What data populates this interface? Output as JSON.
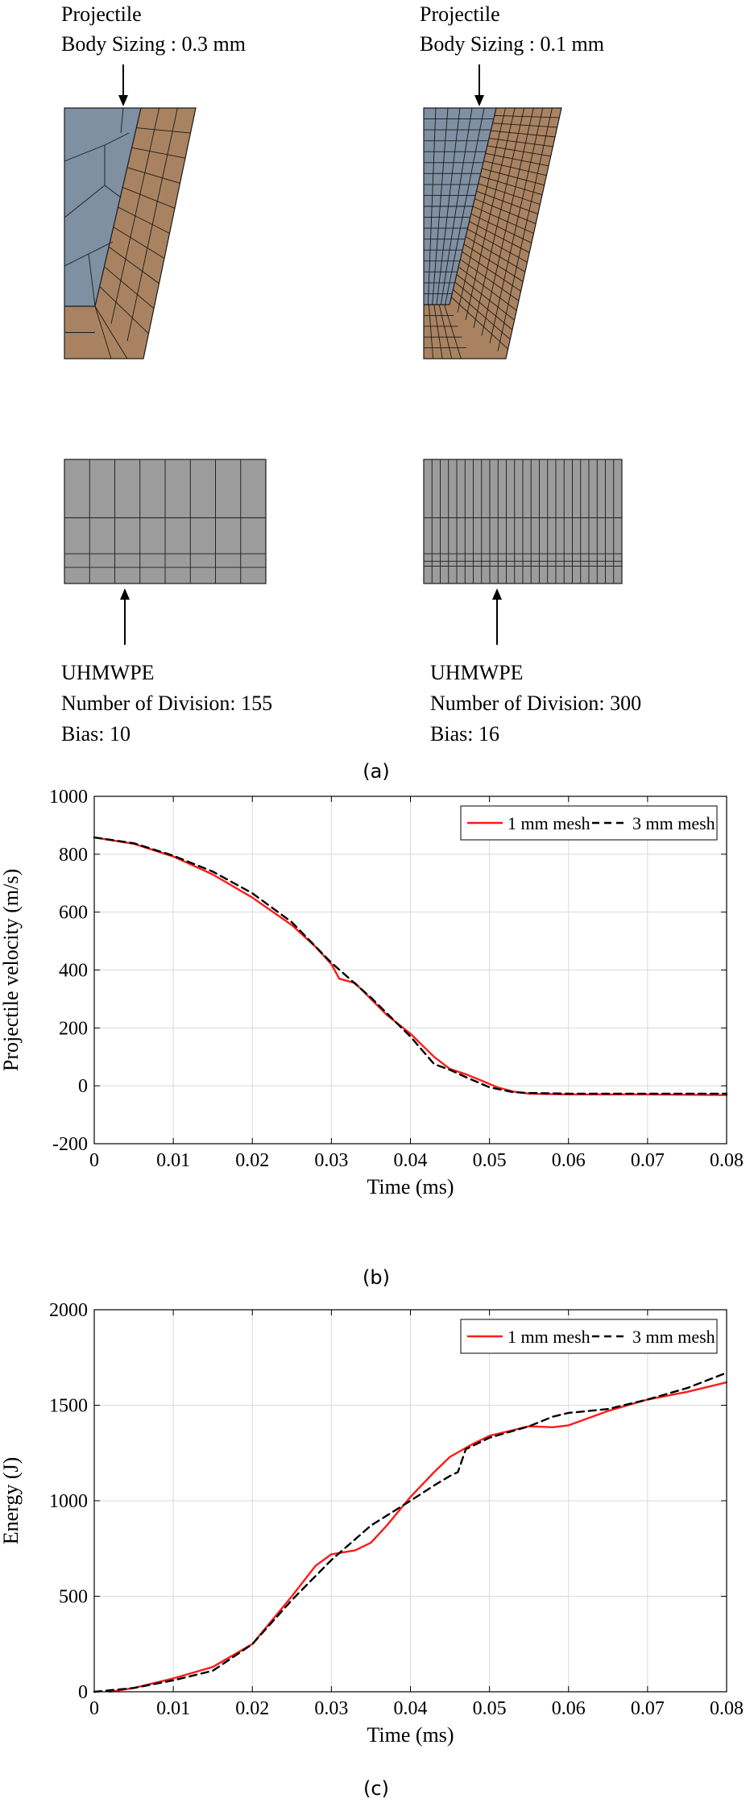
{
  "colors": {
    "projectile_fill": "#7f90a3",
    "target_fill": "#a98361",
    "plate_fill": "#9c9c9c",
    "mesh_line": "#1a1a1a",
    "series_1mm": "#ff1a1a",
    "series_3mm": "#000000"
  },
  "panel_a": {
    "left": {
      "projectile_title": "Projectile",
      "projectile_sizing": "Body Sizing : 0.3 mm",
      "plate_title": "UHMWPE",
      "plate_divisions": "Number of Division: 155",
      "plate_bias": "Bias: 10"
    },
    "right": {
      "projectile_title": "Projectile",
      "projectile_sizing": "Body Sizing : 0.1 mm",
      "plate_title": "UHMWPE",
      "plate_divisions": "Number of Division: 300",
      "plate_bias": "Bias: 16"
    },
    "caption": "(a)"
  },
  "captions": {
    "b": "(b)",
    "c": "(c)"
  },
  "chart_data": [
    {
      "type": "line",
      "title": "",
      "xlabel": "Time (ms)",
      "ylabel": "Projectile velocity (m/s)",
      "xlim": [
        0,
        0.08
      ],
      "ylim": [
        -200,
        1000
      ],
      "xticks": [
        0,
        0.01,
        0.02,
        0.03,
        0.04,
        0.05,
        0.06,
        0.07,
        0.08
      ],
      "yticks": [
        -200,
        0,
        200,
        400,
        600,
        800,
        1000
      ],
      "xtick_labels": [
        "0",
        "0.01",
        "0.02",
        "0.03",
        "0.04",
        "0.05",
        "0.06",
        "0.07",
        "0.08"
      ],
      "ytick_labels": [
        "-200",
        "0",
        "200",
        "400",
        "600",
        "800",
        "1000"
      ],
      "grid": true,
      "legend_position": "top-right",
      "series": [
        {
          "name": "1 mm mesh",
          "style": "solid",
          "x": [
            0,
            0.005,
            0.01,
            0.015,
            0.02,
            0.025,
            0.028,
            0.03,
            0.031,
            0.033,
            0.035,
            0.037,
            0.04,
            0.043,
            0.045,
            0.047,
            0.049,
            0.051,
            0.053,
            0.055,
            0.06,
            0.07,
            0.08
          ],
          "y": [
            858,
            836,
            792,
            730,
            650,
            555,
            480,
            420,
            370,
            355,
            300,
            245,
            180,
            100,
            58,
            40,
            18,
            -5,
            -20,
            -27,
            -30,
            -30,
            -32
          ]
        },
        {
          "name": "3 mm mesh",
          "style": "dashed",
          "x": [
            0,
            0.005,
            0.01,
            0.015,
            0.02,
            0.025,
            0.03,
            0.035,
            0.04,
            0.043,
            0.045,
            0.047,
            0.05,
            0.053,
            0.055,
            0.06,
            0.07,
            0.08
          ],
          "y": [
            858,
            838,
            795,
            740,
            665,
            565,
            425,
            305,
            170,
            75,
            55,
            30,
            -5,
            -22,
            -25,
            -27,
            -27,
            -27
          ]
        }
      ]
    },
    {
      "type": "line",
      "title": "",
      "xlabel": "Time (ms)",
      "ylabel": "Energy (J)",
      "xlim": [
        0,
        0.08
      ],
      "ylim": [
        0,
        2000
      ],
      "xticks": [
        0,
        0.01,
        0.02,
        0.03,
        0.04,
        0.05,
        0.06,
        0.07,
        0.08
      ],
      "yticks": [
        0,
        500,
        1000,
        1500,
        2000
      ],
      "xtick_labels": [
        "0",
        "0.01",
        "0.02",
        "0.03",
        "0.04",
        "0.05",
        "0.06",
        "0.07",
        "0.08"
      ],
      "ytick_labels": [
        "0",
        "500",
        "1000",
        "1500",
        "2000"
      ],
      "grid": true,
      "legend_position": "top-right",
      "series": [
        {
          "name": "1 mm mesh",
          "style": "solid",
          "x": [
            0.002,
            0.005,
            0.01,
            0.015,
            0.02,
            0.025,
            0.028,
            0.03,
            0.033,
            0.035,
            0.037,
            0.04,
            0.043,
            0.045,
            0.048,
            0.05,
            0.055,
            0.058,
            0.06,
            0.065,
            0.07,
            0.075,
            0.08
          ],
          "y": [
            0,
            20,
            70,
            130,
            250,
            500,
            660,
            720,
            740,
            780,
            870,
            1020,
            1150,
            1230,
            1300,
            1340,
            1390,
            1385,
            1395,
            1470,
            1530,
            1570,
            1620
          ]
        },
        {
          "name": "3 mm mesh",
          "style": "dashed",
          "x": [
            0,
            0.005,
            0.01,
            0.015,
            0.02,
            0.025,
            0.03,
            0.035,
            0.04,
            0.043,
            0.045,
            0.046,
            0.047,
            0.05,
            0.055,
            0.058,
            0.06,
            0.065,
            0.07,
            0.075,
            0.08
          ],
          "y": [
            0,
            20,
            60,
            110,
            250,
            480,
            690,
            870,
            1000,
            1080,
            1130,
            1150,
            1270,
            1330,
            1390,
            1440,
            1460,
            1480,
            1530,
            1590,
            1670
          ]
        }
      ]
    }
  ]
}
